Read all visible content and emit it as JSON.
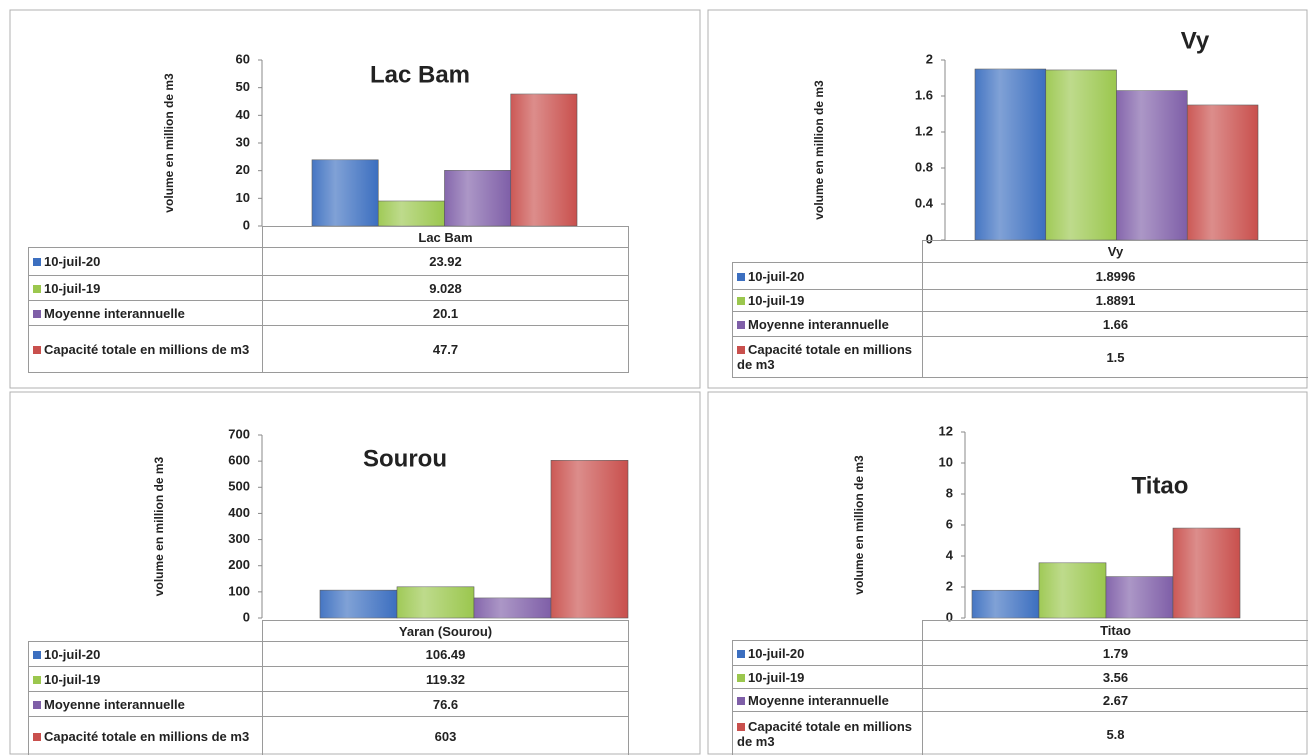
{
  "chart_data": [
    {
      "type": "bar",
      "title": "Lac Bam",
      "ylabel": "volume en million de m3",
      "category": "Lac Bam",
      "series": [
        {
          "name": "10-juil-20",
          "color": "#3c6fc0",
          "values": [
            23.92
          ]
        },
        {
          "name": "10-juil-19",
          "color": "#9bc74e",
          "values": [
            9.028
          ]
        },
        {
          "name": "Moyenne interannuelle",
          "color": "#7f5fa8",
          "values": [
            20.1
          ]
        },
        {
          "name": "Capacité totale en millions de m3",
          "color": "#c9504d",
          "values": [
            47.7
          ]
        }
      ],
      "ylim": [
        0,
        60
      ],
      "yticks": [
        0,
        10,
        20,
        30,
        40,
        50,
        60
      ]
    },
    {
      "type": "bar",
      "title": "Vy",
      "ylabel": "volume en million de m3",
      "category": "Vy",
      "series": [
        {
          "name": "10-juil-20",
          "color": "#3c6fc0",
          "values": [
            1.8996
          ]
        },
        {
          "name": "10-juil-19",
          "color": "#9bc74e",
          "values": [
            1.8891
          ]
        },
        {
          "name": "Moyenne interannuelle",
          "color": "#7f5fa8",
          "values": [
            1.66
          ]
        },
        {
          "name": "Capacité totale en millions de m3",
          "color": "#c9504d",
          "values": [
            1.5
          ]
        }
      ],
      "ylim": [
        0,
        2
      ],
      "yticks": [
        0,
        0.4,
        0.8,
        1.2,
        1.6,
        2
      ]
    },
    {
      "type": "bar",
      "title": "Sourou",
      "ylabel": "volume en million de m3",
      "category": "Yaran (Sourou)",
      "series": [
        {
          "name": "10-juil-20",
          "color": "#3c6fc0",
          "values": [
            106.49
          ]
        },
        {
          "name": "10-juil-19",
          "color": "#9bc74e",
          "values": [
            119.32
          ]
        },
        {
          "name": "Moyenne interannuelle",
          "color": "#7f5fa8",
          "values": [
            76.6
          ]
        },
        {
          "name": "Capacité totale en millions de m3",
          "color": "#c9504d",
          "values": [
            603
          ]
        }
      ],
      "ylim": [
        0,
        700
      ],
      "yticks": [
        0,
        100,
        200,
        300,
        400,
        500,
        600,
        700
      ]
    },
    {
      "type": "bar",
      "title": "Titao",
      "ylabel": "volume en million de m3",
      "category": "Titao",
      "series": [
        {
          "name": "10-juil-20",
          "color": "#3c6fc0",
          "values": [
            1.79
          ]
        },
        {
          "name": "10-juil-19",
          "color": "#9bc74e",
          "values": [
            3.56
          ]
        },
        {
          "name": "Moyenne interannuelle",
          "color": "#7f5fa8",
          "values": [
            2.67
          ]
        },
        {
          "name": "Capacité totale en millions de m3",
          "color": "#c9504d",
          "values": [
            5.8
          ]
        }
      ],
      "ylim": [
        0,
        12
      ],
      "yticks": [
        0,
        2,
        4,
        6,
        8,
        10,
        12
      ]
    }
  ]
}
